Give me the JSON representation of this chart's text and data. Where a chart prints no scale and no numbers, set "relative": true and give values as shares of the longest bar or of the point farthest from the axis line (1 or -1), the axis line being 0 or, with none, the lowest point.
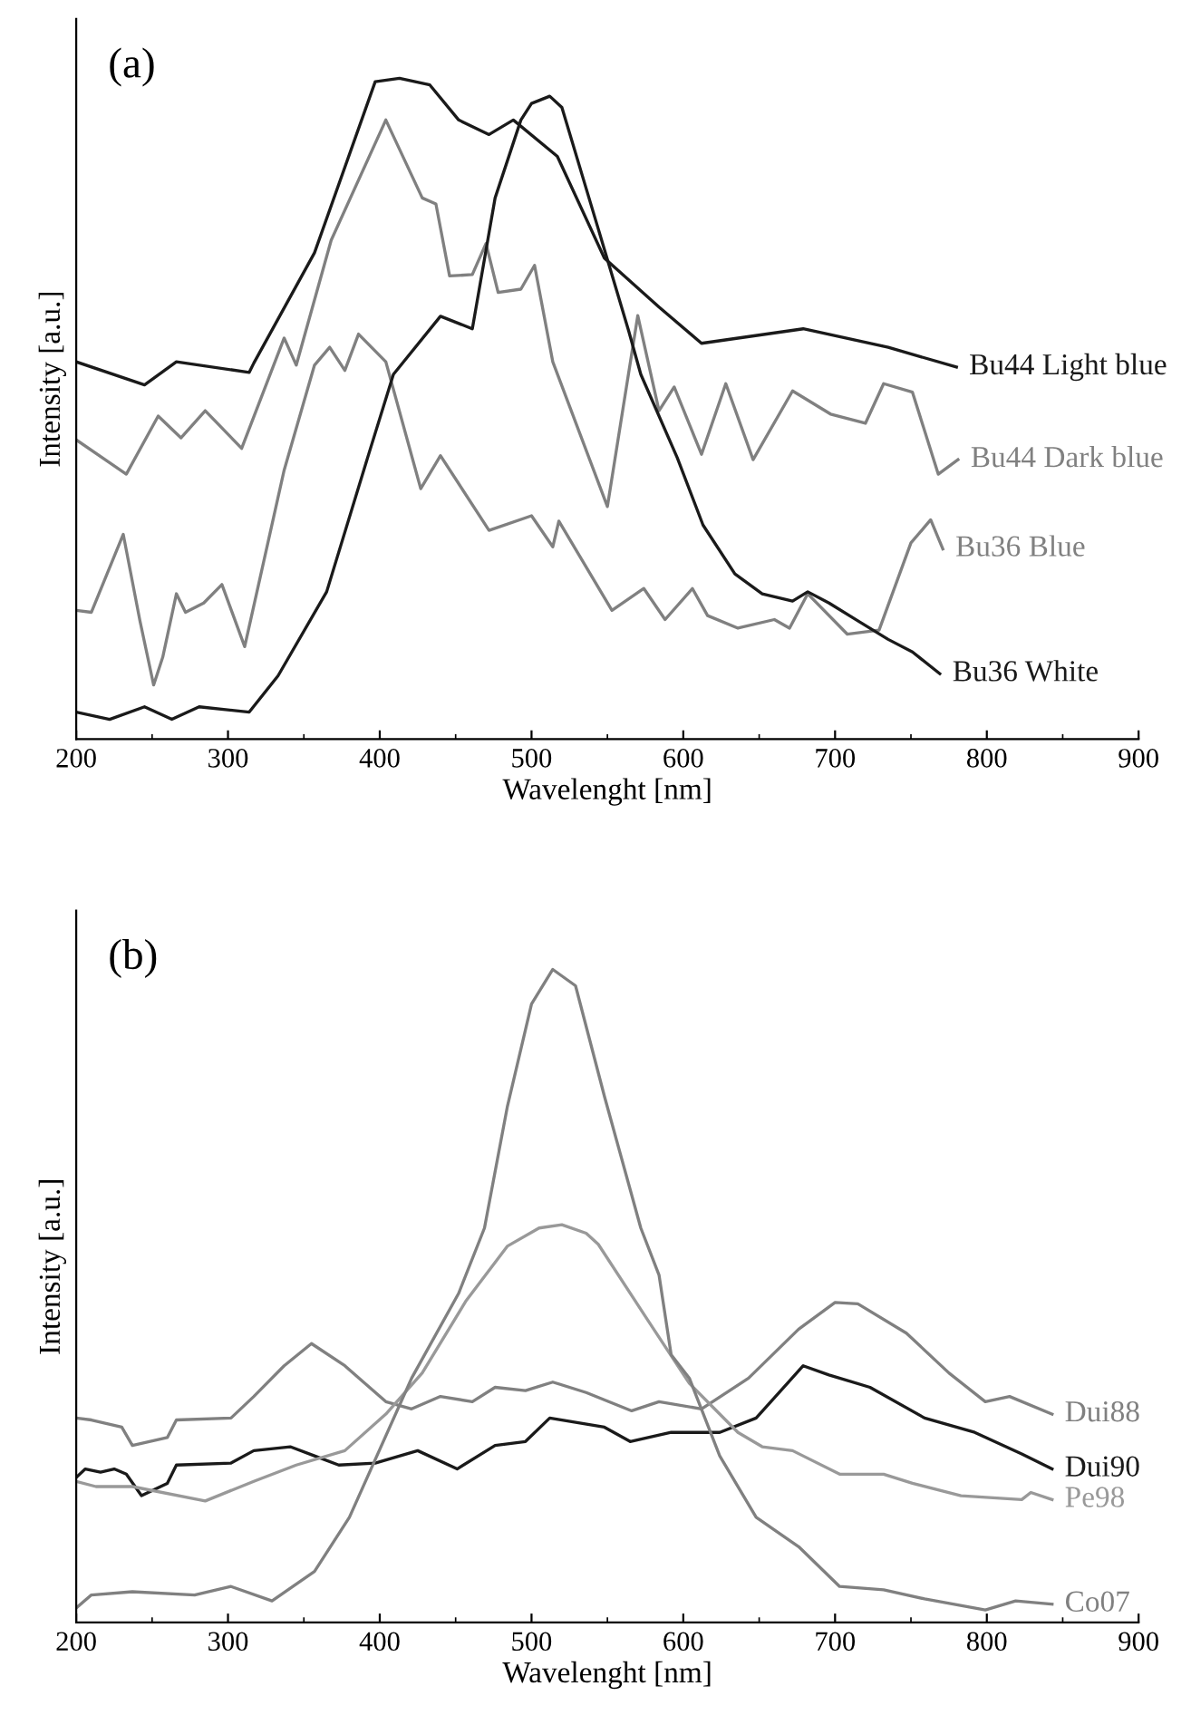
{
  "chart_data": [
    {
      "type": "line",
      "relative": true,
      "xlabel": "Wavelenght [nm]",
      "ylabel": "Intensity [a.u.]",
      "annotations": [
        "(a)"
      ],
      "xlim": [
        200,
        900
      ],
      "xticks": [
        200,
        300,
        400,
        500,
        600,
        700,
        800,
        900
      ],
      "grid": false,
      "legend": false,
      "marker": "none",
      "line_style": "solid",
      "tick_labels": "x",
      "series": [
        {
          "name": "Bu44 Light blue",
          "color": "#1a1a1a",
          "x": [
            200,
            245,
            266,
            314,
            317,
            357,
            397,
            413,
            433,
            452,
            472,
            488,
            517,
            548,
            584,
            612,
            679,
            735,
            780
          ],
          "values": [
            0.571,
            0.536,
            0.571,
            0.555,
            0.569,
            0.736,
            0.995,
            1.0,
            0.99,
            0.937,
            0.915,
            0.937,
            0.882,
            0.728,
            0.654,
            0.599,
            0.621,
            0.593,
            0.563
          ]
        },
        {
          "name": "Bu44 Dark blue",
          "color": "#808080",
          "x": [
            200,
            233,
            254,
            269,
            285,
            309,
            337,
            345,
            368,
            404,
            428,
            437,
            446,
            461,
            470,
            478,
            493,
            502,
            514,
            550,
            570,
            584,
            594,
            612,
            628,
            646,
            672,
            697,
            720,
            732,
            751,
            768,
            781
          ],
          "values": [
            0.453,
            0.401,
            0.489,
            0.456,
            0.497,
            0.44,
            0.607,
            0.566,
            0.755,
            0.937,
            0.819,
            0.81,
            0.701,
            0.703,
            0.75,
            0.676,
            0.681,
            0.717,
            0.571,
            0.352,
            0.641,
            0.497,
            0.533,
            0.431,
            0.538,
            0.423,
            0.527,
            0.492,
            0.478,
            0.538,
            0.525,
            0.401,
            0.423
          ]
        },
        {
          "name": "Bu36 Blue",
          "color": "#808080",
          "x": [
            200,
            210,
            231,
            242,
            251,
            257,
            266,
            272,
            284,
            296,
            311,
            337,
            357,
            367,
            377,
            386,
            404,
            427,
            440,
            472,
            500,
            514,
            518,
            553,
            574,
            588,
            606,
            616,
            636,
            660,
            670,
            682,
            708,
            729,
            750,
            763,
            771
          ],
          "values": [
            0.195,
            0.192,
            0.31,
            0.179,
            0.082,
            0.124,
            0.22,
            0.192,
            0.206,
            0.234,
            0.14,
            0.407,
            0.566,
            0.593,
            0.558,
            0.613,
            0.571,
            0.379,
            0.429,
            0.316,
            0.338,
            0.291,
            0.33,
            0.195,
            0.228,
            0.181,
            0.228,
            0.187,
            0.168,
            0.181,
            0.168,
            0.22,
            0.159,
            0.165,
            0.297,
            0.332,
            0.288
          ]
        },
        {
          "name": "Bu36 White",
          "color": "#1a1a1a",
          "x": [
            200,
            222,
            245,
            263,
            281,
            314,
            333,
            365,
            392,
            409,
            440,
            461,
            476,
            493,
            500,
            512,
            520,
            544,
            564,
            572,
            596,
            613,
            634,
            652,
            672,
            682,
            696,
            715,
            735,
            751,
            769
          ],
          "values": [
            0.041,
            0.03,
            0.049,
            0.03,
            0.049,
            0.041,
            0.096,
            0.223,
            0.426,
            0.552,
            0.64,
            0.621,
            0.819,
            0.937,
            0.962,
            0.973,
            0.956,
            0.772,
            0.618,
            0.552,
            0.426,
            0.324,
            0.25,
            0.22,
            0.209,
            0.223,
            0.206,
            0.179,
            0.151,
            0.132,
            0.099
          ]
        }
      ]
    },
    {
      "type": "line",
      "relative": true,
      "xlabel": "Wavelenght [nm]",
      "ylabel": "Intensity [a.u.]",
      "annotations": [
        "(b)"
      ],
      "xlim": [
        200,
        900
      ],
      "xticks": [
        200,
        300,
        400,
        500,
        600,
        700,
        800,
        900
      ],
      "grid": false,
      "legend": false,
      "marker": "none",
      "line_style": "solid",
      "tick_labels": "x",
      "series": [
        {
          "name": "Dui88",
          "color": "#808080",
          "x": [
            200,
            210,
            230,
            237,
            260,
            266,
            302,
            317,
            337,
            355,
            377,
            404,
            421,
            440,
            461,
            476,
            496,
            514,
            536,
            566,
            584,
            612,
            643,
            676,
            700,
            715,
            747,
            775,
            799,
            815,
            843
          ],
          "values": [
            0.313,
            0.31,
            0.299,
            0.271,
            0.283,
            0.31,
            0.313,
            0.346,
            0.393,
            0.427,
            0.393,
            0.338,
            0.327,
            0.346,
            0.338,
            0.36,
            0.355,
            0.368,
            0.352,
            0.324,
            0.338,
            0.327,
            0.374,
            0.449,
            0.49,
            0.488,
            0.443,
            0.382,
            0.338,
            0.346,
            0.319
          ]
        },
        {
          "name": "Dui90",
          "color": "#1a1a1a",
          "x": [
            200,
            206,
            216,
            225,
            233,
            243,
            260,
            266,
            302,
            317,
            341,
            357,
            373,
            397,
            425,
            451,
            476,
            496,
            512,
            548,
            565,
            592,
            624,
            648,
            679,
            696,
            723,
            759,
            792,
            823,
            843
          ],
          "values": [
            0.222,
            0.235,
            0.23,
            0.235,
            0.227,
            0.194,
            0.213,
            0.241,
            0.244,
            0.263,
            0.269,
            0.255,
            0.241,
            0.244,
            0.263,
            0.235,
            0.271,
            0.277,
            0.313,
            0.299,
            0.277,
            0.291,
            0.291,
            0.313,
            0.393,
            0.379,
            0.36,
            0.313,
            0.291,
            0.258,
            0.235
          ]
        },
        {
          "name": "Pe98",
          "color": "#999999",
          "x": [
            200,
            213,
            237,
            285,
            317,
            345,
            377,
            404,
            428,
            457,
            484,
            505,
            520,
            536,
            544,
            576,
            604,
            636,
            652,
            672,
            703,
            732,
            751,
            783,
            823,
            829,
            843
          ],
          "values": [
            0.216,
            0.208,
            0.208,
            0.186,
            0.216,
            0.241,
            0.263,
            0.319,
            0.382,
            0.493,
            0.576,
            0.604,
            0.609,
            0.596,
            0.579,
            0.465,
            0.366,
            0.291,
            0.269,
            0.263,
            0.227,
            0.227,
            0.213,
            0.194,
            0.188,
            0.199,
            0.188
          ]
        },
        {
          "name": "Co07",
          "color": "#808080",
          "x": [
            200,
            210,
            237,
            278,
            302,
            329,
            357,
            380,
            421,
            452,
            469,
            484,
            500,
            514,
            529,
            548,
            572,
            584,
            592,
            604,
            624,
            648,
            676,
            703,
            732,
            759,
            799,
            819,
            843
          ],
          "values": [
            0.022,
            0.042,
            0.047,
            0.042,
            0.055,
            0.033,
            0.078,
            0.161,
            0.374,
            0.504,
            0.604,
            0.789,
            0.947,
            1.0,
            0.975,
            0.806,
            0.604,
            0.532,
            0.41,
            0.374,
            0.255,
            0.161,
            0.116,
            0.055,
            0.05,
            0.036,
            0.019,
            0.033,
            0.028
          ]
        }
      ]
    }
  ]
}
